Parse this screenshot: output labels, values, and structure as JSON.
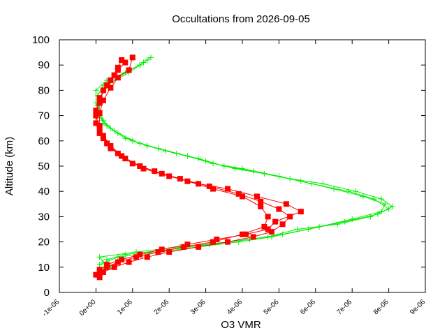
{
  "chart_data": {
    "type": "scatter",
    "title": "Occultations from 2026-09-05",
    "xlabel": "O3 VMR",
    "ylabel": "Altitude (km)",
    "xlim": [
      -1e-06,
      9e-06
    ],
    "ylim": [
      0,
      100
    ],
    "xticks": [
      "-1e-06",
      "0e+00",
      "1e-06",
      "2e-06",
      "3e-06",
      "4e-06",
      "5e-06",
      "6e-06",
      "7e-06",
      "8e-06",
      "9e-06"
    ],
    "xtick_values": [
      -1e-06,
      0,
      1e-06,
      2e-06,
      3e-06,
      4e-06,
      5e-06,
      6e-06,
      7e-06,
      8e-06,
      9e-06
    ],
    "yticks": [
      "0",
      "10",
      "20",
      "30",
      "40",
      "50",
      "60",
      "70",
      "80",
      "90",
      "100"
    ],
    "ytick_values": [
      0,
      10,
      20,
      30,
      40,
      50,
      60,
      70,
      80,
      90,
      100
    ],
    "grid": false,
    "legend": "none",
    "series": [
      {
        "color": "#00ee00",
        "marker": "plus",
        "line": true,
        "profiles": [
          {
            "x": [
              4e-07,
              2e-07,
              1e-07,
              1.1e-06,
              2.3e-06,
              3.6e-06,
              4.7e-06,
              5.5e-06,
              6.6e-06,
              7.5e-06,
              8e-06,
              7.6e-06,
              6.9e-06,
              5.9e-06,
              5e-06,
              4e-06,
              3.2e-06,
              2.5e-06,
              1.7e-06,
              1e-06,
              5e-07,
              2e-07,
              1e-07,
              5e-08,
              5e-08,
              2e-07,
              5e-07,
              9e-07,
              1.2e-06,
              1.4e-06
            ],
            "y": [
              10,
              12,
              14,
              16,
              18,
              20,
              22,
              25,
              27,
              30,
              33,
              37,
              40,
              43,
              46,
              49,
              51,
              54,
              57,
              60,
              64,
              67,
              70,
              74,
              78,
              82,
              85,
              88,
              90,
              92
            ]
          },
          {
            "x": [
              1e-07,
              1e-07,
              6e-07,
              1.7e-06,
              2.8e-06,
              3.9e-06,
              4.8e-06,
              5.8e-06,
              6.8e-06,
              7.7e-06,
              8.1e-06,
              7.8e-06,
              7.1e-06,
              6.2e-06,
              5.3e-06,
              4.3e-06,
              3.5e-06,
              2.8e-06,
              1.9e-06,
              1.2e-06,
              6e-07,
              3e-07,
              1e-07,
              0,
              0,
              3e-07,
              8e-07,
              1.2e-06,
              1.5e-06
            ],
            "y": [
              8,
              11,
              14,
              16,
              18,
              20,
              22,
              25,
              28,
              31,
              34,
              37,
              40,
              43,
              45,
              48,
              50,
              53,
              56,
              59,
              63,
              66,
              70,
              75,
              80,
              84,
              87,
              90,
              93
            ]
          },
          {
            "x": [
              2e-07,
              3e-07,
              8e-07,
              2e-06,
              3.1e-06,
              4.2e-06,
              5.1e-06,
              6.1e-06,
              7e-06,
              7.8e-06,
              7.9e-06,
              7.3e-06,
              6.5e-06,
              5.6e-06,
              4.6e-06,
              3.8e-06,
              3e-06,
              2.2e-06,
              1.4e-06,
              8e-07,
              4e-07,
              2e-07,
              1e-07,
              1e-07,
              4e-07,
              9e-07,
              1.3e-06
            ],
            "y": [
              9,
              13,
              15,
              17,
              19,
              21,
              23,
              26,
              29,
              32,
              35,
              38,
              41,
              44,
              47,
              49,
              52,
              55,
              58,
              61,
              65,
              68,
              72,
              77,
              83,
              87,
              91
            ]
          }
        ]
      },
      {
        "color": "#ff0000",
        "marker": "square",
        "line": true,
        "profiles": [
          {
            "x": [
              1e-07,
              2e-07,
              5e-07,
              9e-07,
              1.4e-06,
              2e-06,
              2.8e-06,
              3.6e-06,
              4.3e-06,
              4.8e-06,
              5.1e-06,
              5.3e-06,
              5e-06,
              4.5e-06,
              3.9e-06,
              3.1e-06,
              2.3e-06,
              1.6e-06,
              1e-06,
              6e-07,
              3e-07,
              1e-07,
              0,
              0,
              1e-07,
              3e-07,
              5e-07,
              6e-07,
              7e-07
            ],
            "y": [
              6,
              8,
              10,
              12,
              14,
              16,
              18,
              20,
              22,
              24,
              27,
              30,
              33,
              36,
              39,
              42,
              45,
              48,
              51,
              55,
              59,
              63,
              67,
              72,
              77,
              82,
              86,
              89,
              92
            ]
          },
          {
            "x": [
              0,
              1e-07,
              3e-07,
              7e-07,
              1.2e-06,
              1.8e-06,
              2.5e-06,
              3.3e-06,
              4.1e-06,
              4.7e-06,
              4.9e-06,
              5.6e-06,
              5.2e-06,
              4.4e-06,
              3.6e-06,
              2.8e-06,
              2e-06,
              1.3e-06,
              8e-07,
              4e-07,
              2e-07,
              1e-07,
              0,
              1e-07,
              2e-07,
              4e-07,
              6e-07,
              8e-07
            ],
            "y": [
              7,
              9,
              11,
              13,
              15,
              17,
              19,
              21,
              23,
              25,
              28,
              32,
              35,
              38,
              41,
              43,
              46,
              49,
              53,
              57,
              61,
              65,
              70,
              75,
              80,
              84,
              88,
              91
            ]
          },
          {
            "x": [
              1e-07,
              3e-07,
              6e-07,
              1.1e-06,
              1.7e-06,
              2.4e-06,
              3.2e-06,
              4e-06,
              4.6e-06,
              4.7e-06,
              4.5e-06,
              4e-06,
              3.2e-06,
              2.5e-06,
              1.8e-06,
              1.2e-06,
              7e-07,
              4e-07,
              2e-07,
              1e-07,
              1e-07,
              2e-07,
              4e-07,
              6e-07,
              9e-07,
              1e-06
            ],
            "y": [
              8,
              10,
              12,
              14,
              16,
              18,
              20,
              23,
              26,
              30,
              34,
              38,
              41,
              44,
              47,
              50,
              54,
              58,
              62,
              66,
              71,
              76,
              81,
              85,
              88,
              93
            ]
          }
        ]
      }
    ]
  }
}
